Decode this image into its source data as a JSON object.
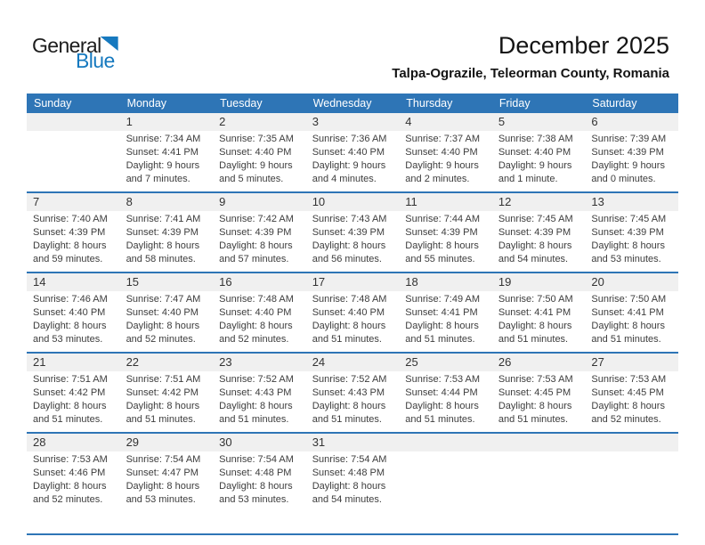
{
  "logo": {
    "part1": "General",
    "part2": "Blue",
    "triangle_icon": "logo-triangle-icon"
  },
  "header": {
    "title": "December 2025",
    "subtitle": "Talpa-Ograzile, Teleorman County, Romania"
  },
  "colors": {
    "calendar_blue": "#2E75B6",
    "logo_blue": "#1679BF",
    "number_band_gray": "#F0F0F0"
  },
  "calendar": {
    "weekdays": [
      "Sunday",
      "Monday",
      "Tuesday",
      "Wednesday",
      "Thursday",
      "Friday",
      "Saturday"
    ],
    "weeks": [
      [
        null,
        {
          "day": "1",
          "sunrise": "Sunrise: 7:34 AM",
          "sunset": "Sunset: 4:41 PM",
          "daylight": "Daylight: 9 hours and 7 minutes."
        },
        {
          "day": "2",
          "sunrise": "Sunrise: 7:35 AM",
          "sunset": "Sunset: 4:40 PM",
          "daylight": "Daylight: 9 hours and 5 minutes."
        },
        {
          "day": "3",
          "sunrise": "Sunrise: 7:36 AM",
          "sunset": "Sunset: 4:40 PM",
          "daylight": "Daylight: 9 hours and 4 minutes."
        },
        {
          "day": "4",
          "sunrise": "Sunrise: 7:37 AM",
          "sunset": "Sunset: 4:40 PM",
          "daylight": "Daylight: 9 hours and 2 minutes."
        },
        {
          "day": "5",
          "sunrise": "Sunrise: 7:38 AM",
          "sunset": "Sunset: 4:40 PM",
          "daylight": "Daylight: 9 hours and 1 minute."
        },
        {
          "day": "6",
          "sunrise": "Sunrise: 7:39 AM",
          "sunset": "Sunset: 4:39 PM",
          "daylight": "Daylight: 9 hours and 0 minutes."
        }
      ],
      [
        {
          "day": "7",
          "sunrise": "Sunrise: 7:40 AM",
          "sunset": "Sunset: 4:39 PM",
          "daylight": "Daylight: 8 hours and 59 minutes."
        },
        {
          "day": "8",
          "sunrise": "Sunrise: 7:41 AM",
          "sunset": "Sunset: 4:39 PM",
          "daylight": "Daylight: 8 hours and 58 minutes."
        },
        {
          "day": "9",
          "sunrise": "Sunrise: 7:42 AM",
          "sunset": "Sunset: 4:39 PM",
          "daylight": "Daylight: 8 hours and 57 minutes."
        },
        {
          "day": "10",
          "sunrise": "Sunrise: 7:43 AM",
          "sunset": "Sunset: 4:39 PM",
          "daylight": "Daylight: 8 hours and 56 minutes."
        },
        {
          "day": "11",
          "sunrise": "Sunrise: 7:44 AM",
          "sunset": "Sunset: 4:39 PM",
          "daylight": "Daylight: 8 hours and 55 minutes."
        },
        {
          "day": "12",
          "sunrise": "Sunrise: 7:45 AM",
          "sunset": "Sunset: 4:39 PM",
          "daylight": "Daylight: 8 hours and 54 minutes."
        },
        {
          "day": "13",
          "sunrise": "Sunrise: 7:45 AM",
          "sunset": "Sunset: 4:39 PM",
          "daylight": "Daylight: 8 hours and 53 minutes."
        }
      ],
      [
        {
          "day": "14",
          "sunrise": "Sunrise: 7:46 AM",
          "sunset": "Sunset: 4:40 PM",
          "daylight": "Daylight: 8 hours and 53 minutes."
        },
        {
          "day": "15",
          "sunrise": "Sunrise: 7:47 AM",
          "sunset": "Sunset: 4:40 PM",
          "daylight": "Daylight: 8 hours and 52 minutes."
        },
        {
          "day": "16",
          "sunrise": "Sunrise: 7:48 AM",
          "sunset": "Sunset: 4:40 PM",
          "daylight": "Daylight: 8 hours and 52 minutes."
        },
        {
          "day": "17",
          "sunrise": "Sunrise: 7:48 AM",
          "sunset": "Sunset: 4:40 PM",
          "daylight": "Daylight: 8 hours and 51 minutes."
        },
        {
          "day": "18",
          "sunrise": "Sunrise: 7:49 AM",
          "sunset": "Sunset: 4:41 PM",
          "daylight": "Daylight: 8 hours and 51 minutes."
        },
        {
          "day": "19",
          "sunrise": "Sunrise: 7:50 AM",
          "sunset": "Sunset: 4:41 PM",
          "daylight": "Daylight: 8 hours and 51 minutes."
        },
        {
          "day": "20",
          "sunrise": "Sunrise: 7:50 AM",
          "sunset": "Sunset: 4:41 PM",
          "daylight": "Daylight: 8 hours and 51 minutes."
        }
      ],
      [
        {
          "day": "21",
          "sunrise": "Sunrise: 7:51 AM",
          "sunset": "Sunset: 4:42 PM",
          "daylight": "Daylight: 8 hours and 51 minutes."
        },
        {
          "day": "22",
          "sunrise": "Sunrise: 7:51 AM",
          "sunset": "Sunset: 4:42 PM",
          "daylight": "Daylight: 8 hours and 51 minutes."
        },
        {
          "day": "23",
          "sunrise": "Sunrise: 7:52 AM",
          "sunset": "Sunset: 4:43 PM",
          "daylight": "Daylight: 8 hours and 51 minutes."
        },
        {
          "day": "24",
          "sunrise": "Sunrise: 7:52 AM",
          "sunset": "Sunset: 4:43 PM",
          "daylight": "Daylight: 8 hours and 51 minutes."
        },
        {
          "day": "25",
          "sunrise": "Sunrise: 7:53 AM",
          "sunset": "Sunset: 4:44 PM",
          "daylight": "Daylight: 8 hours and 51 minutes."
        },
        {
          "day": "26",
          "sunrise": "Sunrise: 7:53 AM",
          "sunset": "Sunset: 4:45 PM",
          "daylight": "Daylight: 8 hours and 51 minutes."
        },
        {
          "day": "27",
          "sunrise": "Sunrise: 7:53 AM",
          "sunset": "Sunset: 4:45 PM",
          "daylight": "Daylight: 8 hours and 52 minutes."
        }
      ],
      [
        {
          "day": "28",
          "sunrise": "Sunrise: 7:53 AM",
          "sunset": "Sunset: 4:46 PM",
          "daylight": "Daylight: 8 hours and 52 minutes."
        },
        {
          "day": "29",
          "sunrise": "Sunrise: 7:54 AM",
          "sunset": "Sunset: 4:47 PM",
          "daylight": "Daylight: 8 hours and 53 minutes."
        },
        {
          "day": "30",
          "sunrise": "Sunrise: 7:54 AM",
          "sunset": "Sunset: 4:48 PM",
          "daylight": "Daylight: 8 hours and 53 minutes."
        },
        {
          "day": "31",
          "sunrise": "Sunrise: 7:54 AM",
          "sunset": "Sunset: 4:48 PM",
          "daylight": "Daylight: 8 hours and 54 minutes."
        },
        null,
        null,
        null
      ]
    ]
  }
}
